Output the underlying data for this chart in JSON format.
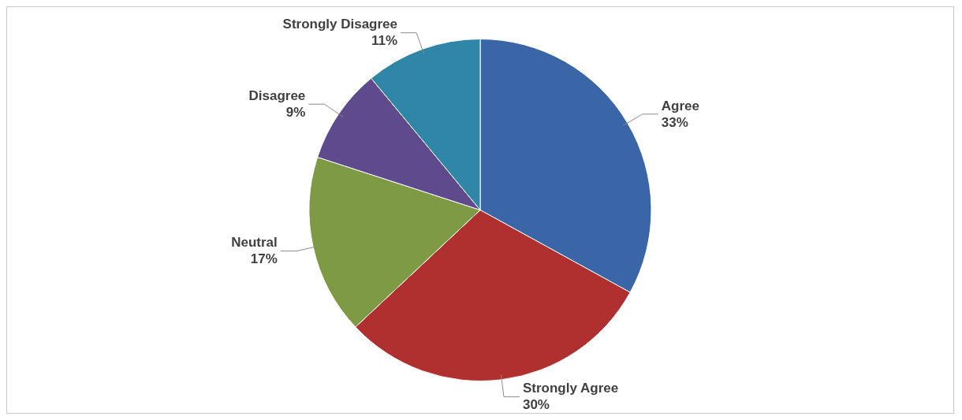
{
  "chart_data": {
    "type": "pie",
    "categories": [
      "Agree",
      "Strongly Agree",
      "Neutral",
      "Disagree",
      "Strongly Disagree"
    ],
    "values": [
      33,
      30,
      17,
      9,
      11
    ],
    "colors": [
      "#3a66a8",
      "#b03030",
      "#7f9a45",
      "#5e4a8c",
      "#2f86a6"
    ],
    "value_labels": [
      "33%",
      "30%",
      "17%",
      "9%",
      "11%"
    ],
    "legend": false
  }
}
